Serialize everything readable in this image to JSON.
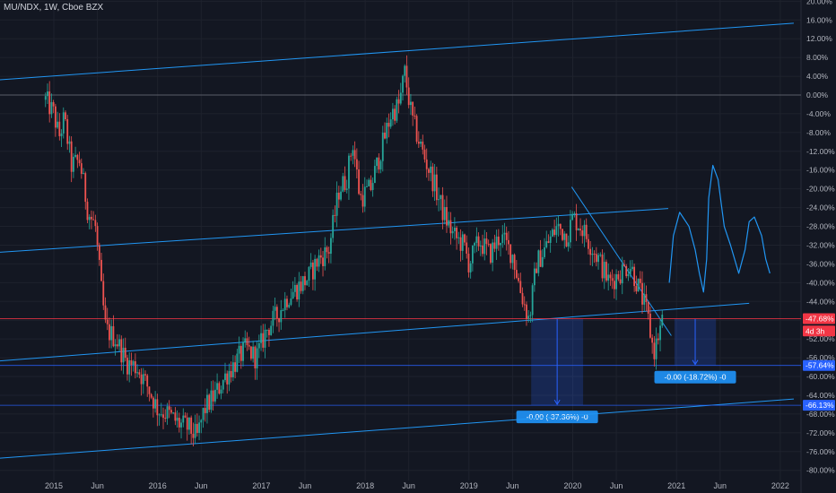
{
  "header": {
    "symbol": "MU/NDX, 1W, Cboe BZX"
  },
  "chart_data": {
    "type": "candlestick",
    "title": "MU/NDX, 1W, Cboe BZX",
    "y_unit": "%",
    "ylim": [
      -82,
      20.5
    ],
    "y_ticks": [
      "20.00%",
      "16.00%",
      "12.00%",
      "8.00%",
      "4.00%",
      "0.00%",
      "-4.00%",
      "-8.00%",
      "-12.00%",
      "-16.00%",
      "-20.00%",
      "-24.00%",
      "-28.00%",
      "-32.00%",
      "-36.00%",
      "-40.00%",
      "-44.00%",
      "-48.00%",
      "-52.00%",
      "-56.00%",
      "-60.00%",
      "-64.00%",
      "-68.00%",
      "-72.00%",
      "-76.00%",
      "-80.00%"
    ],
    "x_ticks": [
      "2015",
      "Jun",
      "2016",
      "Jun",
      "2017",
      "Jun",
      "2018",
      "Jun",
      "2019",
      "Jun",
      "2020",
      "Jun",
      "2021",
      "Jun",
      "2022"
    ],
    "price_tags": [
      {
        "label": "-47.68%",
        "value": -47.68,
        "color": "#f23645"
      },
      {
        "label": "4d 3h",
        "value": -50.3,
        "color": "#f23645"
      },
      {
        "label": "-57.64%",
        "value": -57.64,
        "color": "#2962ff"
      },
      {
        "label": "-66.13%",
        "value": -66.13,
        "color": "#2962ff"
      }
    ],
    "measure_labels": [
      "-0.00 (-37.36%) -0",
      "-0.00 (-18.72%) -0"
    ],
    "series": [
      {
        "name": "MU/NDX",
        "anchors": [
          [
            2014.92,
            -1
          ],
          [
            2015.0,
            -4
          ],
          [
            2015.05,
            -9
          ],
          [
            2015.1,
            -5
          ],
          [
            2015.17,
            -15
          ],
          [
            2015.25,
            -14
          ],
          [
            2015.33,
            -25
          ],
          [
            2015.4,
            -28
          ],
          [
            2015.45,
            -40
          ],
          [
            2015.5,
            -50
          ],
          [
            2015.6,
            -52
          ],
          [
            2015.7,
            -57
          ],
          [
            2015.8,
            -58
          ],
          [
            2015.9,
            -62
          ],
          [
            2016.0,
            -67
          ],
          [
            2016.1,
            -68
          ],
          [
            2016.2,
            -70
          ],
          [
            2016.3,
            -71
          ],
          [
            2016.38,
            -73
          ],
          [
            2016.45,
            -67
          ],
          [
            2016.55,
            -64
          ],
          [
            2016.65,
            -60
          ],
          [
            2016.75,
            -57
          ],
          [
            2016.85,
            -54
          ],
          [
            2016.95,
            -56
          ],
          [
            2017.05,
            -50
          ],
          [
            2017.15,
            -47
          ],
          [
            2017.25,
            -43
          ],
          [
            2017.35,
            -41
          ],
          [
            2017.45,
            -39
          ],
          [
            2017.55,
            -35
          ],
          [
            2017.65,
            -33
          ],
          [
            2017.75,
            -20
          ],
          [
            2017.82,
            -18
          ],
          [
            2017.88,
            -10
          ],
          [
            2017.95,
            -22
          ],
          [
            2018.05,
            -20
          ],
          [
            2018.15,
            -12
          ],
          [
            2018.25,
            -4
          ],
          [
            2018.33,
            -2
          ],
          [
            2018.38,
            5
          ],
          [
            2018.45,
            -5
          ],
          [
            2018.55,
            -12
          ],
          [
            2018.65,
            -18
          ],
          [
            2018.75,
            -25
          ],
          [
            2018.85,
            -30
          ],
          [
            2018.95,
            -32
          ],
          [
            2019.0,
            -36
          ],
          [
            2019.1,
            -31
          ],
          [
            2019.2,
            -34
          ],
          [
            2019.3,
            -30
          ],
          [
            2019.42,
            -34
          ],
          [
            2019.5,
            -42
          ],
          [
            2019.58,
            -48
          ],
          [
            2019.65,
            -36
          ],
          [
            2019.75,
            -32
          ],
          [
            2019.85,
            -28
          ],
          [
            2019.95,
            -30
          ],
          [
            2020.0,
            -26
          ],
          [
            2020.08,
            -28
          ],
          [
            2020.15,
            -31
          ],
          [
            2020.25,
            -35
          ],
          [
            2020.35,
            -40
          ],
          [
            2020.45,
            -38
          ],
          [
            2020.55,
            -36
          ],
          [
            2020.65,
            -42
          ],
          [
            2020.72,
            -47
          ],
          [
            2020.78,
            -55
          ],
          [
            2020.84,
            -50
          ],
          [
            2020.88,
            -47
          ]
        ]
      }
    ],
    "drawings": [
      {
        "kind": "trendline",
        "from": [
          2014.0,
          2.5
        ],
        "to": [
          2022.13,
          15.3
        ]
      },
      {
        "kind": "trendline",
        "from": [
          2014.0,
          -34.2
        ],
        "to": [
          2020.92,
          -24.2
        ]
      },
      {
        "kind": "trendline",
        "from": [
          2014.0,
          -57.5
        ],
        "to": [
          2021.7,
          -44.4
        ]
      },
      {
        "kind": "trendline",
        "from": [
          2014.0,
          -78.2
        ],
        "to": [
          2022.13,
          -64.8
        ]
      },
      {
        "kind": "trendline",
        "from": [
          2019.99,
          -19.6
        ],
        "to": [
          2020.95,
          -51.3
        ]
      },
      {
        "kind": "hline",
        "value": 0,
        "color": "#787b86"
      },
      {
        "kind": "hline",
        "value": -47.68,
        "color": "#f23645"
      },
      {
        "kind": "hline",
        "value": -57.64,
        "color": "#2962ff"
      },
      {
        "kind": "hline",
        "value": -66.13,
        "color": "#2962ff"
      },
      {
        "kind": "measure",
        "x": [
          2019.6,
          2020.1
        ],
        "y": [
          -47.68,
          -66.13
        ],
        "label_index": 0
      },
      {
        "kind": "measure",
        "x": [
          2020.98,
          2021.38
        ],
        "y": [
          -47.68,
          -57.64
        ],
        "label_index": 1
      },
      {
        "kind": "brush",
        "points": [
          [
            2020.93,
            -40
          ],
          [
            2020.97,
            -30
          ],
          [
            2021.03,
            -25
          ],
          [
            2021.12,
            -28
          ],
          [
            2021.18,
            -33
          ],
          [
            2021.22,
            -38
          ],
          [
            2021.26,
            -42
          ],
          [
            2021.29,
            -35
          ],
          [
            2021.31,
            -22
          ],
          [
            2021.35,
            -15
          ],
          [
            2021.4,
            -18
          ],
          [
            2021.46,
            -28
          ],
          [
            2021.52,
            -32
          ],
          [
            2021.6,
            -38
          ],
          [
            2021.66,
            -33
          ],
          [
            2021.7,
            -27
          ],
          [
            2021.75,
            -26
          ],
          [
            2021.82,
            -30
          ],
          [
            2021.86,
            -35
          ],
          [
            2021.9,
            -38
          ]
        ]
      }
    ],
    "colors": {
      "up": "#26a69a",
      "down": "#ef5350",
      "line": "#2196f3",
      "background": "#131722"
    }
  }
}
